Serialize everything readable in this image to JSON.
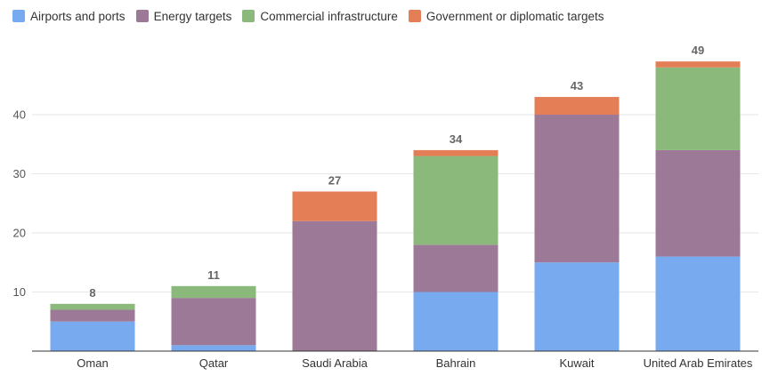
{
  "chart_data": {
    "type": "bar",
    "stacked": true,
    "categories": [
      "Oman",
      "Qatar",
      "Saudi Arabia",
      "Bahrain",
      "Kuwait",
      "United Arab Emirates"
    ],
    "series": [
      {
        "name": "Airports and ports",
        "color": "#78aaf0",
        "values": [
          5,
          1,
          0,
          10,
          15,
          16
        ]
      },
      {
        "name": "Energy targets",
        "color": "#9c7a97",
        "values": [
          2,
          8,
          22,
          8,
          25,
          18
        ]
      },
      {
        "name": "Commercial infrastructure",
        "color": "#8bb87b",
        "values": [
          1,
          2,
          0,
          15,
          0,
          14
        ]
      },
      {
        "name": "Government or diplomatic targets",
        "color": "#e47e56",
        "values": [
          0,
          0,
          5,
          1,
          3,
          1
        ]
      }
    ],
    "totals": [
      8,
      11,
      27,
      34,
      43,
      49
    ],
    "yticks": [
      10,
      20,
      30,
      40
    ],
    "ylim": [
      0,
      52
    ],
    "grid": true,
    "legend_position": "top-left"
  }
}
